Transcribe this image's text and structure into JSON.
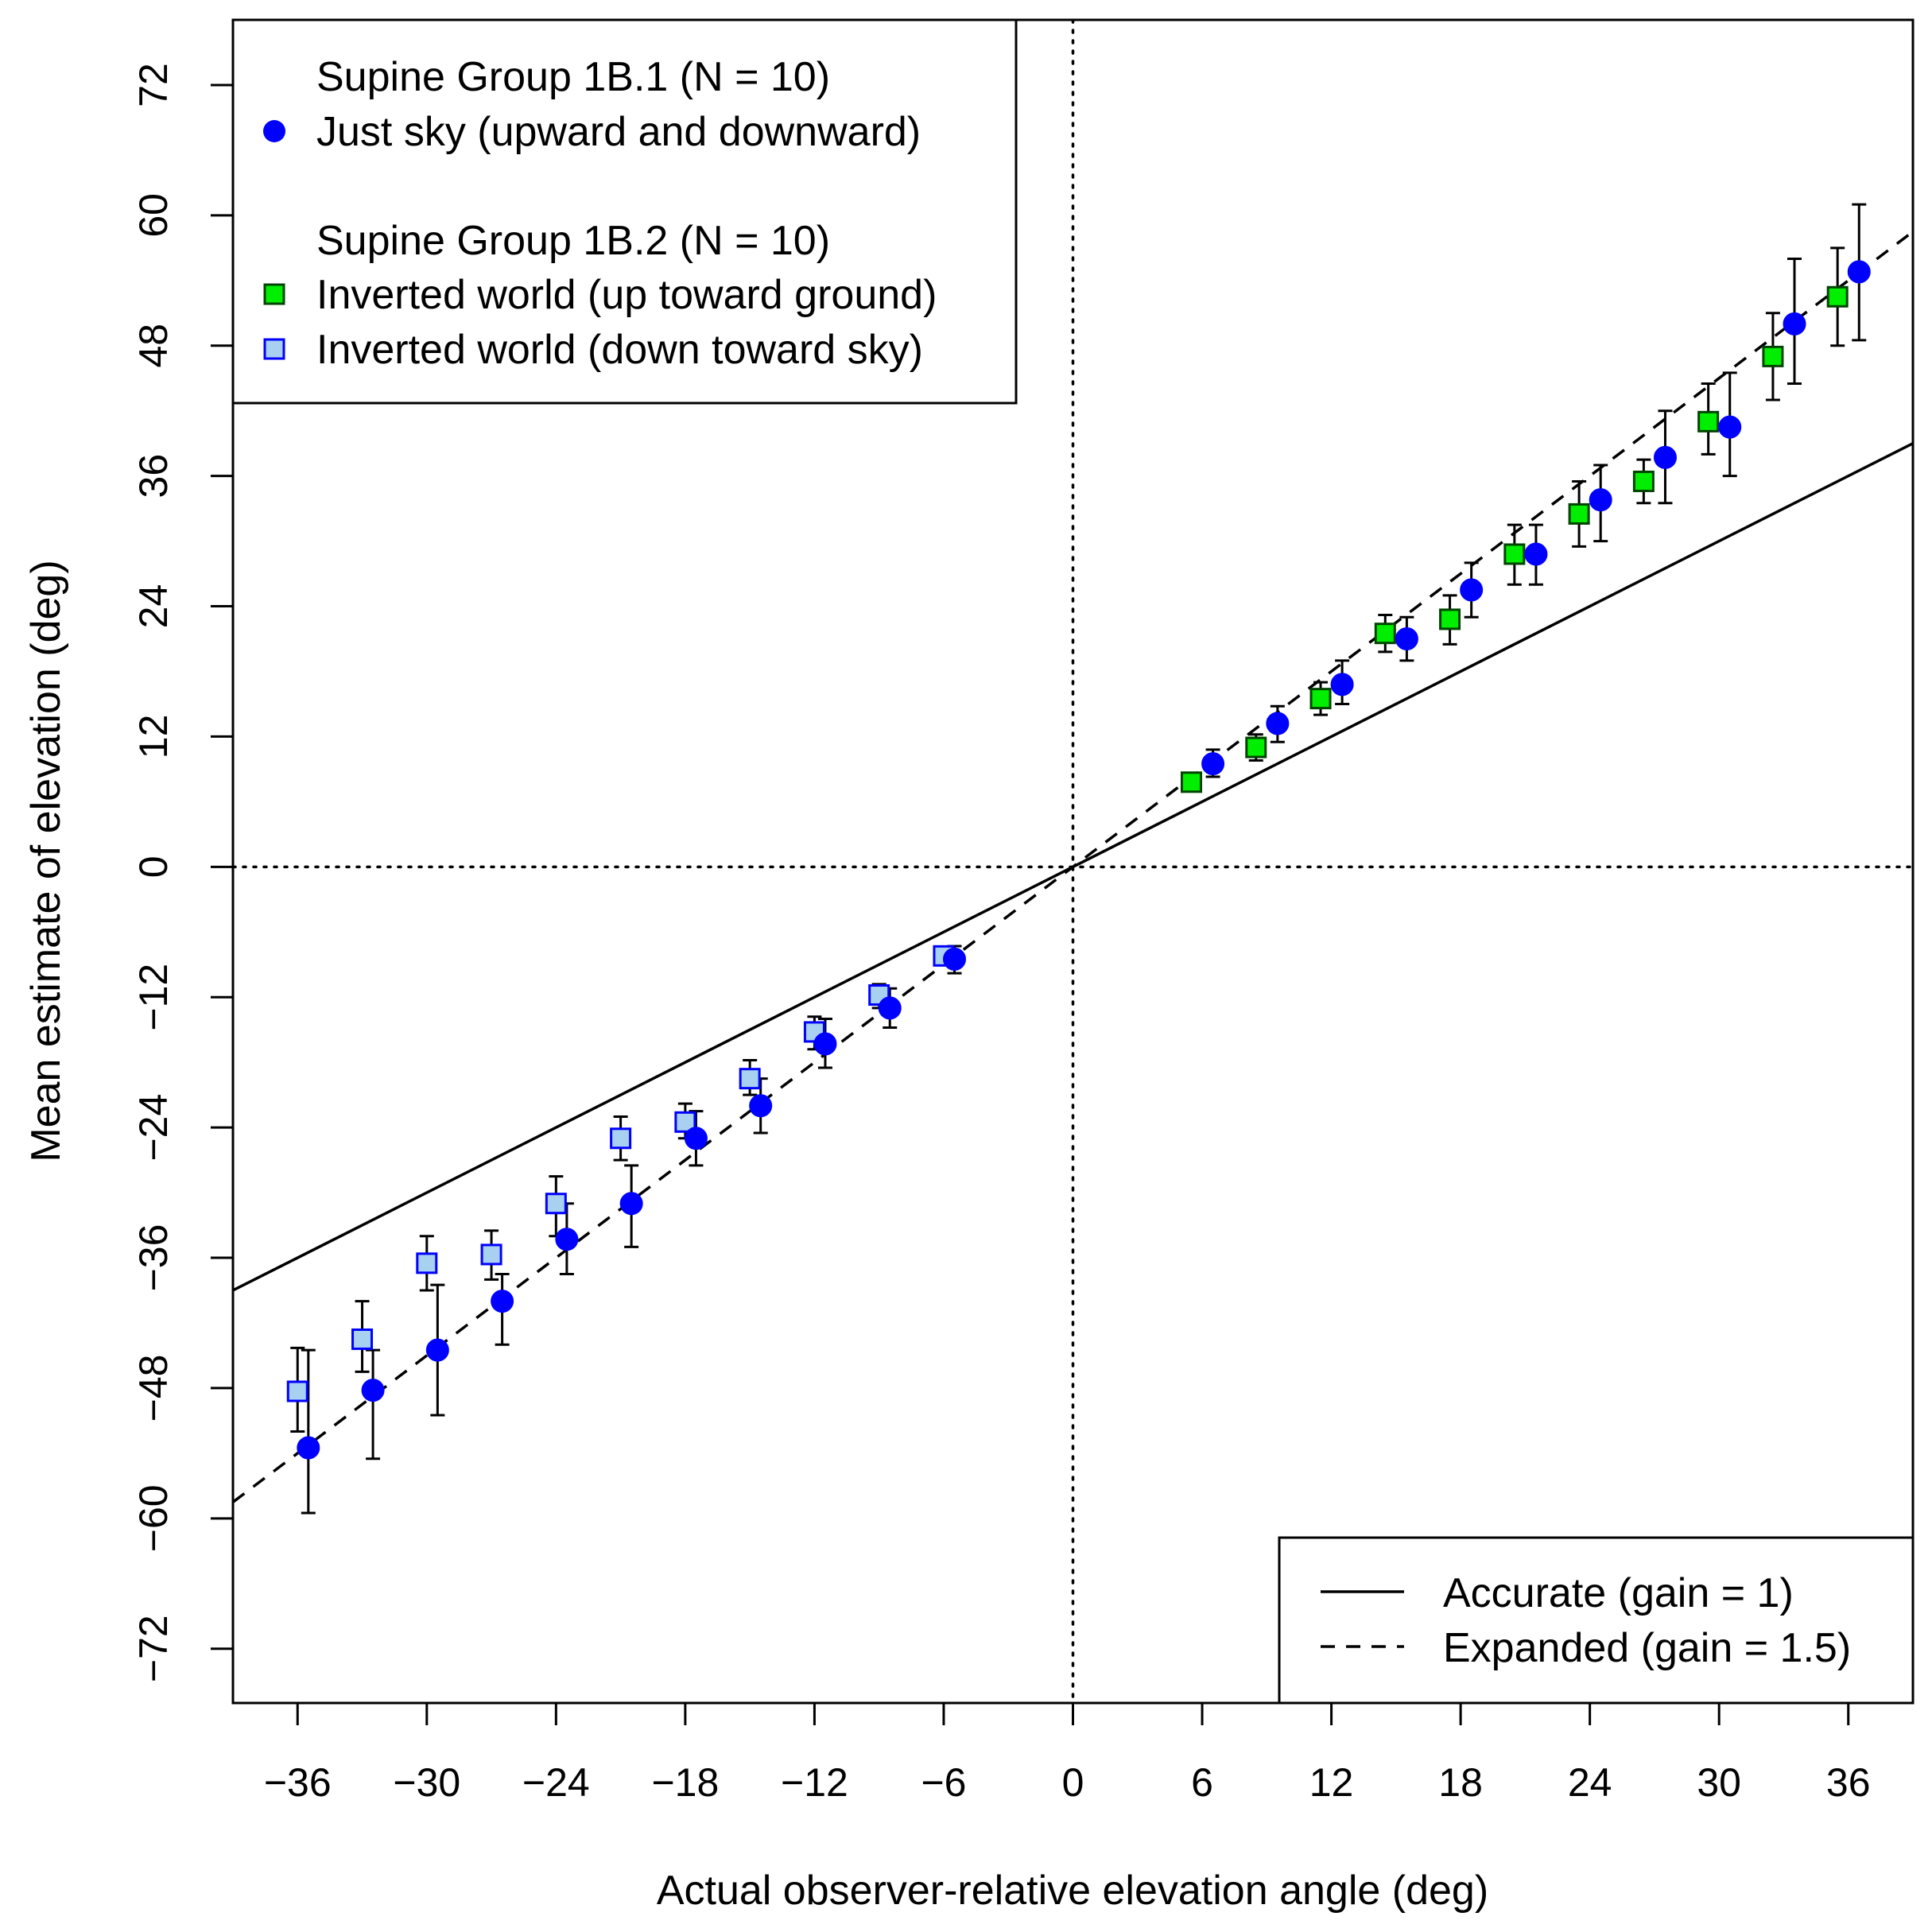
{
  "chart_data": {
    "type": "scatter",
    "title": "",
    "xlabel": "Actual observer-relative elevation angle (deg)",
    "ylabel": "Mean estimate of elevation (deg)",
    "xlim": [
      -39,
      39
    ],
    "ylim": [
      -77,
      78
    ],
    "x_ticks": [
      -36,
      -30,
      -24,
      -18,
      -12,
      -6,
      0,
      6,
      12,
      18,
      24,
      30,
      36
    ],
    "x_tick_labels": [
      "−36",
      "−30",
      "−24",
      "−18",
      "−12",
      "−6",
      "0",
      "6",
      "12",
      "18",
      "24",
      "30",
      "36"
    ],
    "y_ticks": [
      -72,
      -60,
      -48,
      -36,
      -24,
      -12,
      0,
      12,
      24,
      36,
      48,
      60,
      72
    ],
    "y_tick_labels": [
      "−72",
      "−60",
      "−48",
      "−36",
      "−24",
      "−12",
      "0",
      "12",
      "24",
      "36",
      "48",
      "60",
      "72"
    ],
    "reference_lines": [
      {
        "name": "Accurate (gain = 1)",
        "gain": 1.0,
        "style": "solid"
      },
      {
        "name": "Expanded (gain = 1.5)",
        "gain": 1.5,
        "style": "dashed"
      }
    ],
    "zero_lines": {
      "style": "dotted",
      "x": 0,
      "y": 0
    },
    "series": [
      {
        "name": "Just sky (upward and downward)",
        "marker": "circle",
        "color": "#0000ff",
        "stroke": "#0000ff",
        "points": [
          {
            "x": -35.5,
            "y": -53.5,
            "lo": -59.5,
            "hi": -44.5
          },
          {
            "x": -32.5,
            "y": -48.2,
            "lo": -54.5,
            "hi": -44.5
          },
          {
            "x": -29.5,
            "y": -44.5,
            "lo": -50.5,
            "hi": -38.5
          },
          {
            "x": -26.5,
            "y": -40.0,
            "lo": -44.0,
            "hi": -37.5
          },
          {
            "x": -23.5,
            "y": -34.3,
            "lo": -37.5,
            "hi": -31.0
          },
          {
            "x": -20.5,
            "y": -31.0,
            "lo": -35.0,
            "hi": -27.5
          },
          {
            "x": -17.5,
            "y": -25.0,
            "lo": -27.5,
            "hi": -22.5
          },
          {
            "x": -14.5,
            "y": -22.0,
            "lo": -24.5,
            "hi": -19.5
          },
          {
            "x": -11.5,
            "y": -16.3,
            "lo": -18.5,
            "hi": -14.0
          },
          {
            "x": -8.5,
            "y": -13.0,
            "lo": -14.8,
            "hi": -11.2
          },
          {
            "x": -5.5,
            "y": -8.5,
            "lo": -9.8,
            "hi": -7.3
          },
          {
            "x": 6.5,
            "y": 9.5,
            "lo": 8.3,
            "hi": 10.8
          },
          {
            "x": 9.5,
            "y": 13.2,
            "lo": 11.5,
            "hi": 14.8
          },
          {
            "x": 12.5,
            "y": 16.8,
            "lo": 15.0,
            "hi": 19.0
          },
          {
            "x": 15.5,
            "y": 21.0,
            "lo": 19.0,
            "hi": 23.0
          },
          {
            "x": 18.5,
            "y": 25.5,
            "lo": 23.0,
            "hi": 28.0
          },
          {
            "x": 21.5,
            "y": 28.8,
            "lo": 26.0,
            "hi": 31.5
          },
          {
            "x": 24.5,
            "y": 33.8,
            "lo": 30.0,
            "hi": 37.0
          },
          {
            "x": 27.5,
            "y": 37.7,
            "lo": 33.5,
            "hi": 42.0
          },
          {
            "x": 30.5,
            "y": 40.5,
            "lo": 36.0,
            "hi": 45.5
          },
          {
            "x": 33.5,
            "y": 50.0,
            "lo": 44.5,
            "hi": 56.0
          },
          {
            "x": 36.5,
            "y": 54.8,
            "lo": 48.5,
            "hi": 61.0
          }
        ]
      },
      {
        "name": "Inverted world (up toward ground)",
        "marker": "square",
        "color": "#00ee00",
        "stroke": "#004400",
        "points": [
          {
            "x": 5.5,
            "y": 7.8,
            "lo": 7.0,
            "hi": 8.6
          },
          {
            "x": 8.5,
            "y": 11.0,
            "lo": 9.8,
            "hi": 12.2
          },
          {
            "x": 11.5,
            "y": 15.5,
            "lo": 14.0,
            "hi": 17.0
          },
          {
            "x": 14.5,
            "y": 21.5,
            "lo": 19.8,
            "hi": 23.2
          },
          {
            "x": 17.5,
            "y": 22.8,
            "lo": 20.5,
            "hi": 25.0
          },
          {
            "x": 20.5,
            "y": 28.8,
            "lo": 26.0,
            "hi": 31.5
          },
          {
            "x": 23.5,
            "y": 32.5,
            "lo": 29.5,
            "hi": 35.5
          },
          {
            "x": 26.5,
            "y": 35.5,
            "lo": 33.5,
            "hi": 37.5
          },
          {
            "x": 29.5,
            "y": 41.0,
            "lo": 38.0,
            "hi": 44.5
          },
          {
            "x": 32.5,
            "y": 47.0,
            "lo": 43.0,
            "hi": 51.0
          },
          {
            "x": 35.5,
            "y": 52.5,
            "lo": 48.0,
            "hi": 57.0
          }
        ]
      },
      {
        "name": "Inverted world (down toward sky)",
        "marker": "square",
        "color": "#a8d0f0",
        "stroke": "#0000ff",
        "points": [
          {
            "x": -36.0,
            "y": -48.3,
            "lo": -52.0,
            "hi": -44.3
          },
          {
            "x": -33.0,
            "y": -43.5,
            "lo": -46.5,
            "hi": -40.0
          },
          {
            "x": -30.0,
            "y": -36.5,
            "lo": -39.0,
            "hi": -34.0
          },
          {
            "x": -27.0,
            "y": -35.7,
            "lo": -38.0,
            "hi": -33.5
          },
          {
            "x": -24.0,
            "y": -31.0,
            "lo": -34.0,
            "hi": -28.5
          },
          {
            "x": -21.0,
            "y": -25.0,
            "lo": -27.0,
            "hi": -23.0
          },
          {
            "x": -18.0,
            "y": -23.5,
            "lo": -25.0,
            "hi": -21.8
          },
          {
            "x": -15.0,
            "y": -19.5,
            "lo": -21.0,
            "hi": -17.8
          },
          {
            "x": -12.0,
            "y": -15.2,
            "lo": -16.8,
            "hi": -13.8
          },
          {
            "x": -9.0,
            "y": -11.8,
            "lo": -13.0,
            "hi": -10.8
          },
          {
            "x": -6.0,
            "y": -8.2,
            "lo": -9.0,
            "hi": -7.4
          }
        ]
      }
    ],
    "legend_top_left": {
      "group1_title": "Supine Group 1B.1 (N = 10)",
      "group1_entries": [
        "Just sky (upward and downward)"
      ],
      "group2_title": "Supine Group 1B.2 (N = 10)",
      "group2_entries": [
        "Inverted world (up toward ground)",
        "Inverted world (down toward sky)"
      ]
    },
    "legend_bottom_right": [
      "Accurate (gain = 1)",
      "Expanded (gain = 1.5)"
    ]
  }
}
